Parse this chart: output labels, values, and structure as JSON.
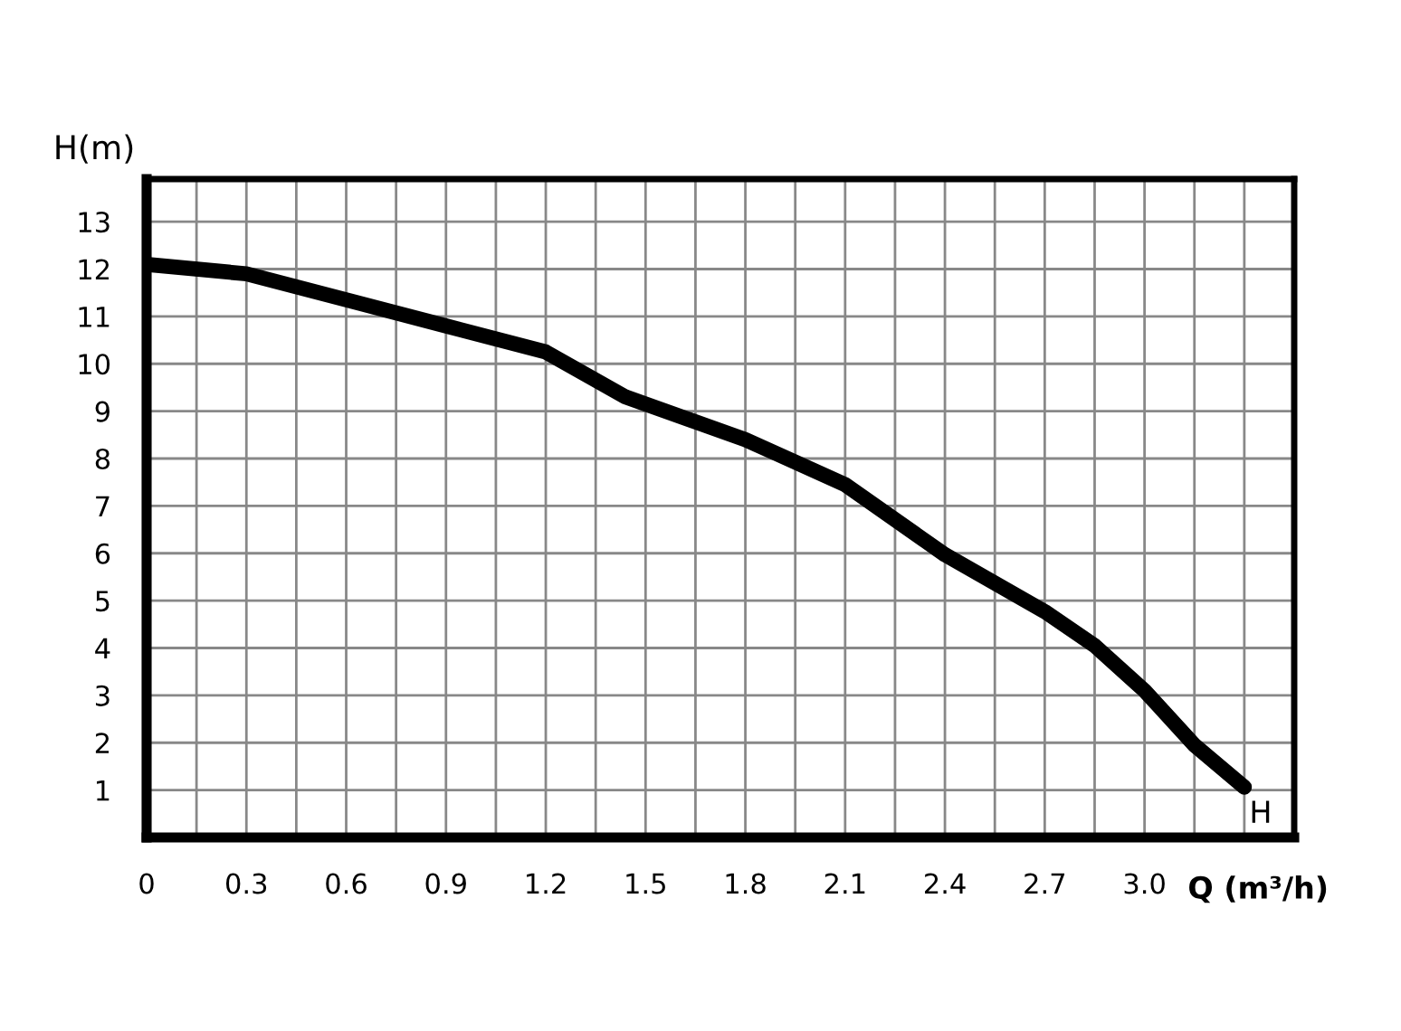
{
  "chart_data": {
    "type": "line",
    "xlabel": "Q (m³/h)",
    "ylabel": "H(m)",
    "x": [
      0,
      0.3,
      0.6,
      0.9,
      1.2,
      1.44,
      1.8,
      2.1,
      2.4,
      2.7,
      2.85,
      3.0,
      3.15,
      3.3
    ],
    "series": [
      {
        "color": "#000000",
        "values": [
          12.1,
          11.9,
          11.35,
          10.8,
          10.25,
          9.3,
          8.4,
          7.45,
          5.97,
          4.77,
          4.05,
          3.1,
          1.95,
          1.06
        ]
      }
    ],
    "annotations": [
      {
        "text": "H",
        "x": 3.3,
        "y": 1.06
      }
    ],
    "xlim": [
      0,
      3.45
    ],
    "ylim": [
      0,
      13.9
    ],
    "xticks": [
      0,
      {
        "value": 0.15,
        "label": null
      },
      0.3,
      {
        "value": 0.45,
        "label": null
      },
      0.6,
      {
        "value": 0.75,
        "label": null
      },
      0.9,
      {
        "value": 1.05,
        "label": null
      },
      1.2,
      {
        "value": 1.35,
        "label": null
      },
      1.5,
      {
        "value": 1.65,
        "label": null
      },
      1.8,
      {
        "value": 1.95,
        "label": null
      },
      2.1,
      {
        "value": 2.25,
        "label": null
      },
      2.4,
      {
        "value": 2.55,
        "label": null
      },
      2.7,
      {
        "value": 2.85,
        "label": null
      },
      {
        "value": 3.0,
        "label": "3.0"
      },
      {
        "value": 3.15,
        "label": null
      },
      {
        "value": 3.3,
        "label": null
      }
    ],
    "yticks": [
      {
        "value": 0,
        "label": null
      },
      1,
      2,
      3,
      4,
      5,
      6,
      7,
      8,
      9,
      10,
      11,
      12,
      13
    ],
    "grid": true,
    "legend": false,
    "marker": "none",
    "line_style": "solid"
  }
}
